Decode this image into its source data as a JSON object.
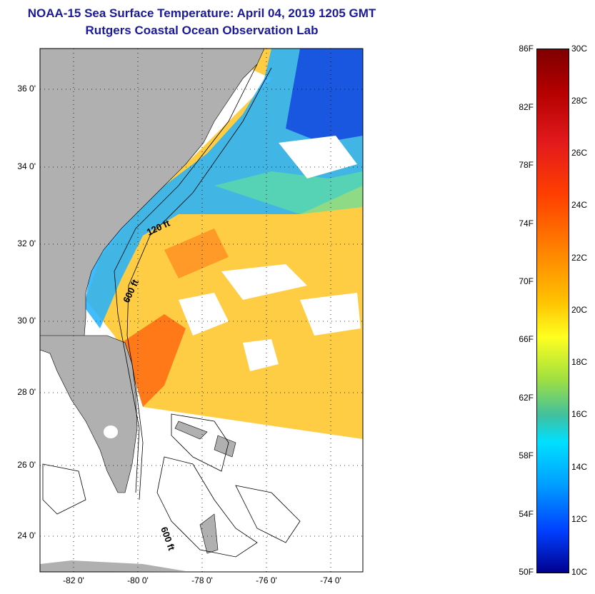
{
  "title": {
    "line1": "NOAA-15 Sea Surface Temperature:  April 04, 2019 1205 GMT",
    "line2": "Rutgers Coastal Ocean Observation Lab"
  },
  "lat_labels": [
    "36 0'",
    "34 0'",
    "32 0'",
    "30 0'",
    "28 0'",
    "26 0'",
    "24 0'"
  ],
  "lon_labels": [
    "-82 0'",
    "-80 0'",
    "-78 0'",
    "-76 0'",
    "-74 0'"
  ],
  "contour_labels": [
    "120 ft",
    "600 ft",
    "600 ft"
  ],
  "colorbar": {
    "fahrenheit": [
      "86F",
      "82F",
      "78F",
      "74F",
      "70F",
      "66F",
      "62F",
      "58F",
      "54F",
      "50F"
    ],
    "celsius": [
      "30C",
      "28C",
      "26C",
      "24C",
      "22C",
      "20C",
      "18C",
      "16C",
      "14C",
      "12C",
      "10C"
    ]
  },
  "colors": {
    "land": "#b0b0b0",
    "title": "#1a1a9a"
  }
}
